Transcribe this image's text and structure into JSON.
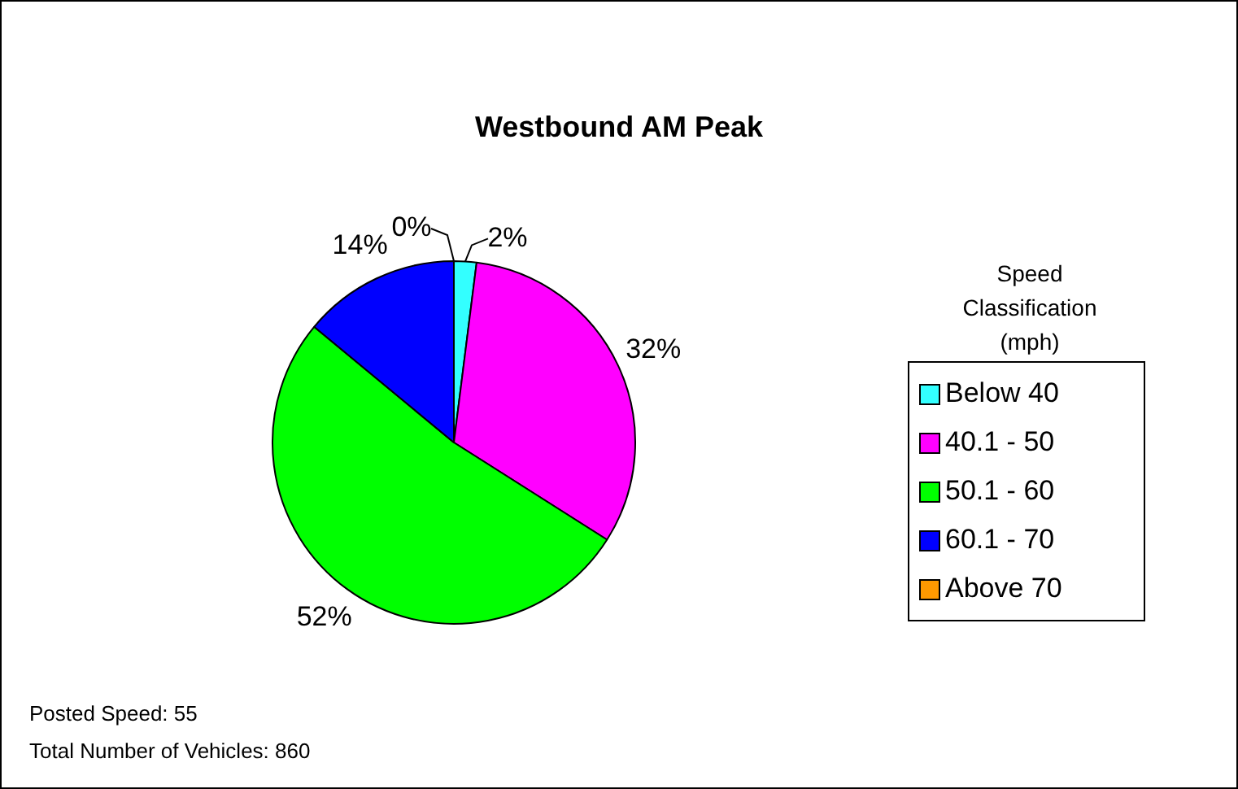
{
  "chart_data": {
    "type": "pie",
    "title": "Westbound AM Peak",
    "legend_title": "Speed Classification (mph)",
    "legend": "right",
    "categories": [
      "Below 40",
      "40.1 - 50",
      "50.1 - 60",
      "60.1 - 70",
      "Above 70"
    ],
    "values": [
      2,
      32,
      52,
      14,
      0
    ],
    "value_labels": [
      "2%",
      "32%",
      "52%",
      "14%",
      "0%"
    ],
    "colors": [
      "#33ffff",
      "#ff00ff",
      "#00ff00",
      "#0000ff",
      "#ff9900"
    ],
    "annotations": [
      "Posted Speed: 55",
      "Total Number of Vehicles: 860"
    ]
  }
}
